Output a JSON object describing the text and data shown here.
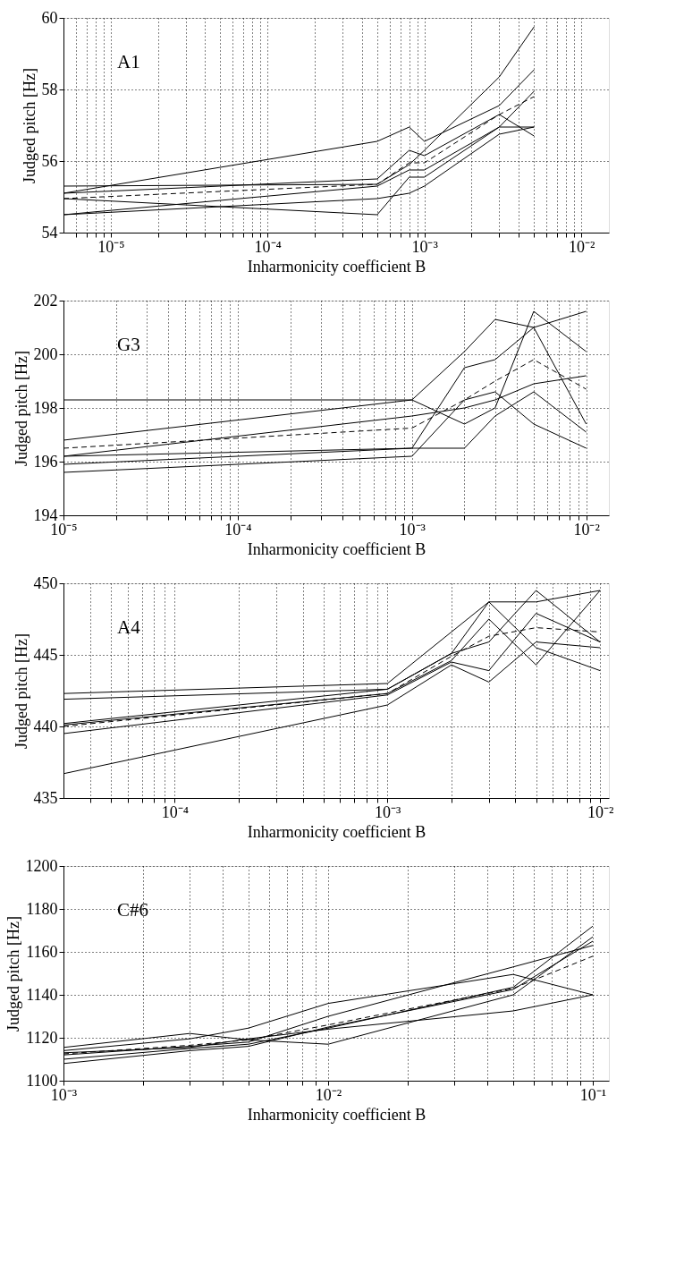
{
  "chart_data": [
    {
      "type": "line",
      "xlabel": "Inharmonicity coefficient B",
      "ylabel": "Judged pitch [Hz]",
      "log": "x",
      "grid": true,
      "annotations": [
        "A1"
      ],
      "x": [
        5e-06,
        0.0005,
        0.0008,
        0.001,
        0.003,
        0.005
      ],
      "xlim": [
        5e-06,
        0.015
      ],
      "ylim": [
        54,
        60
      ],
      "yticks": [
        54,
        56,
        58,
        60
      ],
      "xticks": [
        {
          "value": 6e-06,
          "label": null
        },
        {
          "value": 7e-06,
          "label": null
        },
        {
          "value": 8e-06,
          "label": null
        },
        {
          "value": 9e-06,
          "label": null
        },
        {
          "value": 1e-05,
          "label": "10⁻⁵"
        },
        {
          "value": 2e-05,
          "label": null
        },
        {
          "value": 3e-05,
          "label": null
        },
        {
          "value": 4e-05,
          "label": null
        },
        {
          "value": 5e-05,
          "label": null
        },
        {
          "value": 6e-05,
          "label": null
        },
        {
          "value": 7e-05,
          "label": null
        },
        {
          "value": 8e-05,
          "label": null
        },
        {
          "value": 9e-05,
          "label": null
        },
        {
          "value": 0.0001,
          "label": "10⁻⁴"
        },
        {
          "value": 0.0002,
          "label": null
        },
        {
          "value": 0.0003,
          "label": null
        },
        {
          "value": 0.0004,
          "label": null
        },
        {
          "value": 0.0005,
          "label": null
        },
        {
          "value": 0.0006,
          "label": null
        },
        {
          "value": 0.0007,
          "label": null
        },
        {
          "value": 0.0008,
          "label": null
        },
        {
          "value": 0.0009,
          "label": null
        },
        {
          "value": 0.001,
          "label": "10⁻³"
        },
        {
          "value": 0.002,
          "label": null
        },
        {
          "value": 0.003,
          "label": null
        },
        {
          "value": 0.004,
          "label": null
        },
        {
          "value": 0.005,
          "label": null
        },
        {
          "value": 0.006,
          "label": null
        },
        {
          "value": 0.007,
          "label": null
        },
        {
          "value": 0.008,
          "label": null
        },
        {
          "value": 0.009,
          "label": null
        },
        {
          "value": 0.01,
          "label": "10⁻²"
        }
      ],
      "series": [
        {
          "color": "#000000",
          "line_style": "solid",
          "values": [
            55.1,
            56.55,
            56.95,
            56.55,
            57.55,
            58.55
          ]
        },
        {
          "color": "#000000",
          "line_style": "solid",
          "values": [
            55.3,
            55.35,
            55.9,
            56.3,
            58.35,
            59.75
          ]
        },
        {
          "color": "#000000",
          "line_style": "solid",
          "values": [
            55.1,
            55.5,
            56.3,
            56.15,
            57.3,
            56.7
          ]
        },
        {
          "color": "#000000",
          "line_style": "solid",
          "values": [
            54.5,
            55.3,
            55.75,
            55.75,
            56.95,
            56.95
          ]
        },
        {
          "color": "#000000",
          "line_style": "solid",
          "values": [
            54.95,
            54.5,
            55.55,
            55.55,
            56.95,
            57.95
          ]
        },
        {
          "color": "#000000",
          "line_style": "solid",
          "values": [
            54.5,
            54.95,
            55.1,
            55.3,
            56.75,
            56.95
          ]
        },
        {
          "color": "#000000",
          "line_style": "dashed",
          "values": [
            54.95,
            55.35,
            55.95,
            55.95,
            57.3,
            57.8
          ]
        }
      ]
    },
    {
      "type": "line",
      "xlabel": "Inharmonicity coefficient B",
      "ylabel": "Judged pitch [Hz]",
      "log": "x",
      "grid": true,
      "annotations": [
        "G3"
      ],
      "x": [
        1e-05,
        0.001,
        0.002,
        0.003,
        0.005,
        0.01
      ],
      "xlim": [
        1e-05,
        0.0135
      ],
      "ylim": [
        194,
        202
      ],
      "yticks": [
        194,
        196,
        198,
        200,
        202
      ],
      "xticks": [
        {
          "value": 1e-05,
          "label": "10⁻⁵"
        },
        {
          "value": 2e-05,
          "label": null
        },
        {
          "value": 3e-05,
          "label": null
        },
        {
          "value": 4e-05,
          "label": null
        },
        {
          "value": 5e-05,
          "label": null
        },
        {
          "value": 6e-05,
          "label": null
        },
        {
          "value": 7e-05,
          "label": null
        },
        {
          "value": 8e-05,
          "label": null
        },
        {
          "value": 9e-05,
          "label": null
        },
        {
          "value": 0.0001,
          "label": "10⁻⁴"
        },
        {
          "value": 0.0002,
          "label": null
        },
        {
          "value": 0.0003,
          "label": null
        },
        {
          "value": 0.0004,
          "label": null
        },
        {
          "value": 0.0005,
          "label": null
        },
        {
          "value": 0.0006,
          "label": null
        },
        {
          "value": 0.0007,
          "label": null
        },
        {
          "value": 0.0008,
          "label": null
        },
        {
          "value": 0.0009,
          "label": null
        },
        {
          "value": 0.001,
          "label": "10⁻³"
        },
        {
          "value": 0.002,
          "label": null
        },
        {
          "value": 0.003,
          "label": null
        },
        {
          "value": 0.004,
          "label": null
        },
        {
          "value": 0.005,
          "label": null
        },
        {
          "value": 0.006,
          "label": null
        },
        {
          "value": 0.007,
          "label": null
        },
        {
          "value": 0.008,
          "label": null
        },
        {
          "value": 0.009,
          "label": null
        },
        {
          "value": 0.01,
          "label": "10⁻²"
        }
      ],
      "series": [
        {
          "color": "#000000",
          "line_style": "solid",
          "values": [
            198.3,
            198.3,
            200.1,
            201.3,
            201.0,
            197.4
          ]
        },
        {
          "color": "#000000",
          "line_style": "solid",
          "values": [
            196.8,
            198.3,
            197.4,
            198.0,
            201.6,
            200.1
          ]
        },
        {
          "color": "#000000",
          "line_style": "solid",
          "values": [
            196.2,
            197.7,
            198.0,
            198.3,
            198.9,
            199.2
          ]
        },
        {
          "color": "#000000",
          "line_style": "solid",
          "values": [
            195.9,
            196.5,
            199.5,
            199.8,
            201.0,
            201.6
          ]
        },
        {
          "color": "#000000",
          "line_style": "solid",
          "values": [
            195.6,
            196.2,
            198.3,
            198.6,
            197.4,
            196.5
          ]
        },
        {
          "color": "#000000",
          "line_style": "solid",
          "values": [
            196.2,
            196.5,
            196.5,
            197.7,
            198.6,
            197.1
          ]
        },
        {
          "color": "#000000",
          "line_style": "dashed",
          "values": [
            196.5,
            197.25,
            198.3,
            199.0,
            199.8,
            198.7
          ]
        }
      ]
    },
    {
      "type": "line",
      "xlabel": "Inharmonicity coefficient B",
      "ylabel": "Judged pitch [Hz]",
      "log": "x",
      "grid": true,
      "annotations": [
        "A4"
      ],
      "x": [
        3e-05,
        0.001,
        0.002,
        0.003,
        0.005,
        0.01
      ],
      "xlim": [
        3e-05,
        0.011
      ],
      "ylim": [
        435,
        450
      ],
      "yticks": [
        435,
        440,
        445,
        450
      ],
      "xticks": [
        {
          "value": 4e-05,
          "label": null
        },
        {
          "value": 5e-05,
          "label": null
        },
        {
          "value": 6e-05,
          "label": null
        },
        {
          "value": 7e-05,
          "label": null
        },
        {
          "value": 8e-05,
          "label": null
        },
        {
          "value": 9e-05,
          "label": null
        },
        {
          "value": 0.0001,
          "label": "10⁻⁴"
        },
        {
          "value": 0.0002,
          "label": null
        },
        {
          "value": 0.0003,
          "label": null
        },
        {
          "value": 0.0004,
          "label": null
        },
        {
          "value": 0.0005,
          "label": null
        },
        {
          "value": 0.0006,
          "label": null
        },
        {
          "value": 0.0007,
          "label": null
        },
        {
          "value": 0.0008,
          "label": null
        },
        {
          "value": 0.0009,
          "label": null
        },
        {
          "value": 0.001,
          "label": "10⁻³"
        },
        {
          "value": 0.002,
          "label": null
        },
        {
          "value": 0.003,
          "label": null
        },
        {
          "value": 0.004,
          "label": null
        },
        {
          "value": 0.005,
          "label": null
        },
        {
          "value": 0.006,
          "label": null
        },
        {
          "value": 0.007,
          "label": null
        },
        {
          "value": 0.008,
          "label": null
        },
        {
          "value": 0.009,
          "label": null
        },
        {
          "value": 0.01,
          "label": "10⁻²"
        }
      ],
      "series": [
        {
          "color": "#000000",
          "line_style": "solid",
          "values": [
            442.3,
            443.0,
            446.6,
            448.7,
            448.7,
            449.5
          ]
        },
        {
          "color": "#000000",
          "line_style": "solid",
          "values": [
            441.9,
            442.6,
            445.1,
            448.7,
            445.5,
            443.9
          ]
        },
        {
          "color": "#000000",
          "line_style": "solid",
          "values": [
            440.2,
            442.6,
            445.1,
            445.9,
            449.5,
            445.9
          ]
        },
        {
          "color": "#000000",
          "line_style": "solid",
          "values": [
            440.1,
            442.3,
            444.6,
            447.5,
            444.3,
            449.5
          ]
        },
        {
          "color": "#000000",
          "line_style": "solid",
          "values": [
            439.5,
            442.2,
            444.5,
            443.9,
            447.9,
            445.9
          ]
        },
        {
          "color": "#000000",
          "line_style": "solid",
          "values": [
            436.7,
            441.5,
            444.3,
            443.1,
            445.9,
            445.5
          ]
        },
        {
          "color": "#000000",
          "line_style": "dashed",
          "values": [
            440.0,
            442.3,
            444.9,
            446.3,
            446.9,
            446.6
          ]
        }
      ]
    },
    {
      "type": "line",
      "xlabel": "Inharmonicity coefficient B",
      "ylabel": "Judged pitch [Hz]",
      "log": "x",
      "grid": true,
      "annotations": [
        "C#6"
      ],
      "x": [
        0.001,
        0.003,
        0.005,
        0.01,
        0.05,
        0.1
      ],
      "xlim": [
        0.001,
        0.115
      ],
      "ylim": [
        1100,
        1200
      ],
      "yticks": [
        1100,
        1120,
        1140,
        1160,
        1180,
        1200
      ],
      "xticks": [
        {
          "value": 0.001,
          "label": "10⁻³"
        },
        {
          "value": 0.002,
          "label": null
        },
        {
          "value": 0.003,
          "label": null
        },
        {
          "value": 0.004,
          "label": null
        },
        {
          "value": 0.005,
          "label": null
        },
        {
          "value": 0.006,
          "label": null
        },
        {
          "value": 0.007,
          "label": null
        },
        {
          "value": 0.008,
          "label": null
        },
        {
          "value": 0.009,
          "label": null
        },
        {
          "value": 0.01,
          "label": "10⁻²"
        },
        {
          "value": 0.02,
          "label": null
        },
        {
          "value": 0.03,
          "label": null
        },
        {
          "value": 0.04,
          "label": null
        },
        {
          "value": 0.05,
          "label": null
        },
        {
          "value": 0.06,
          "label": null
        },
        {
          "value": 0.07,
          "label": null
        },
        {
          "value": 0.08,
          "label": null
        },
        {
          "value": 0.09,
          "label": null
        },
        {
          "value": 0.1,
          "label": "10⁻¹"
        }
      ],
      "series": [
        {
          "color": "#000000",
          "line_style": "solid",
          "values": [
            1115.5,
            1122,
            1119,
            1117,
            1140,
            1167
          ]
        },
        {
          "color": "#000000",
          "line_style": "solid",
          "values": [
            1114,
            1119.5,
            1124.5,
            1136,
            1149.5,
            1140
          ]
        },
        {
          "color": "#000000",
          "line_style": "solid",
          "values": [
            1112,
            1116,
            1118,
            1130,
            1153,
            1163
          ]
        },
        {
          "color": "#000000",
          "line_style": "solid",
          "values": [
            1110,
            1115,
            1117,
            1124.5,
            1143.5,
            1172
          ]
        },
        {
          "color": "#000000",
          "line_style": "solid",
          "values": [
            1108,
            1114,
            1116,
            1125,
            1142.5,
            1165
          ]
        },
        {
          "color": "#000000",
          "line_style": "solid",
          "values": [
            1113,
            1115.5,
            1119.5,
            1124,
            1132.5,
            1140
          ]
        },
        {
          "color": "#000000",
          "line_style": "dashed",
          "values": [
            1112.5,
            1116.5,
            1119,
            1126,
            1143,
            1158
          ]
        }
      ]
    }
  ]
}
